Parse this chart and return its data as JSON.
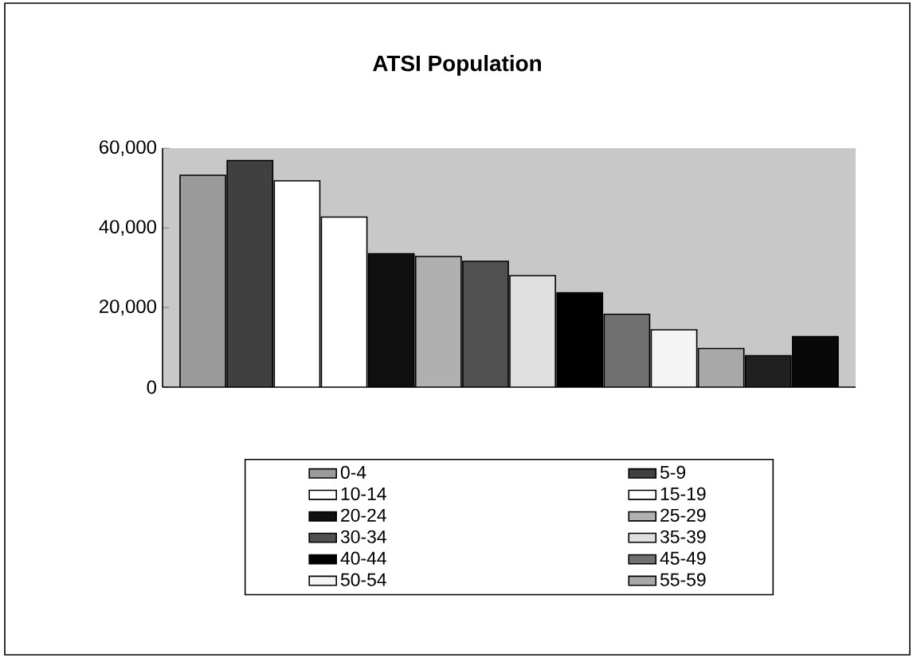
{
  "chart_data": {
    "type": "bar",
    "title": "ATSI Population",
    "categories": [
      null
    ],
    "series": [
      {
        "name": "0-4",
        "color": "#9a9a9a",
        "values": [
          53200
        ]
      },
      {
        "name": "5-9",
        "color": "#404040",
        "values": [
          56900
        ]
      },
      {
        "name": "10-14",
        "color": "#ffffff",
        "values": [
          51800
        ]
      },
      {
        "name": "15-19",
        "color": "#ffffff",
        "values": [
          42700
        ]
      },
      {
        "name": "20-24",
        "color": "#101010",
        "values": [
          33500
        ]
      },
      {
        "name": "25-29",
        "color": "#b0b0b0",
        "values": [
          32800
        ]
      },
      {
        "name": "30-34",
        "color": "#505050",
        "values": [
          31600
        ]
      },
      {
        "name": "35-39",
        "color": "#e0e0e0",
        "values": [
          28000
        ]
      },
      {
        "name": "40-44",
        "color": "#000000",
        "values": [
          23700
        ]
      },
      {
        "name": "45-49",
        "color": "#707070",
        "values": [
          18300
        ]
      },
      {
        "name": "50-54",
        "color": "#f4f4f4",
        "values": [
          14400
        ]
      },
      {
        "name": "55-59",
        "color": "#a8a8a8",
        "values": [
          9700
        ]
      },
      {
        "color": "#202020",
        "values": [
          7900
        ]
      },
      {
        "color": "#080808",
        "values": [
          12700
        ]
      }
    ],
    "ylim": [
      0,
      60000
    ],
    "yticks": [
      {
        "value": 0,
        "label": "0"
      },
      {
        "value": 20000,
        "label": "20,000"
      },
      {
        "value": 40000,
        "label": "40,000"
      },
      {
        "value": 60000,
        "label": "60,000"
      }
    ],
    "tick_labels": "y",
    "grid": false,
    "legend": "bottom"
  }
}
